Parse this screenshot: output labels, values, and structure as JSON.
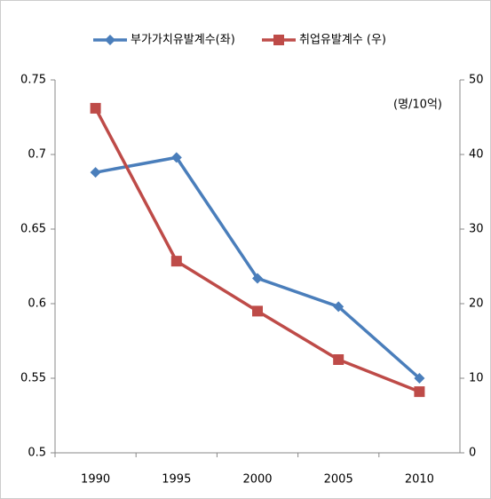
{
  "chart_data": {
    "type": "line",
    "categories": [
      "1990",
      "1995",
      "2000",
      "2005",
      "2010"
    ],
    "series": [
      {
        "name": "부가가치유발계수(좌)",
        "color": "#4a7ebb",
        "marker": "diamond",
        "values": [
          0.688,
          0.698,
          0.617,
          0.598,
          0.55
        ]
      },
      {
        "name": "취업유발계수 (우)",
        "color": "#be4b48",
        "marker": "square",
        "axis": "y2",
        "values": [
          46.2,
          25.7,
          19,
          12.5,
          8.2
        ]
      }
    ],
    "ylim": [
      0.5,
      0.75
    ],
    "yticks": [
      0.5,
      0.55,
      0.6,
      0.65,
      0.7,
      0.75
    ],
    "y2lim": [
      0,
      50
    ],
    "y2ticks": [
      0,
      10,
      20,
      30,
      40,
      50
    ],
    "annotation": "(명/10억)",
    "grid": false
  }
}
